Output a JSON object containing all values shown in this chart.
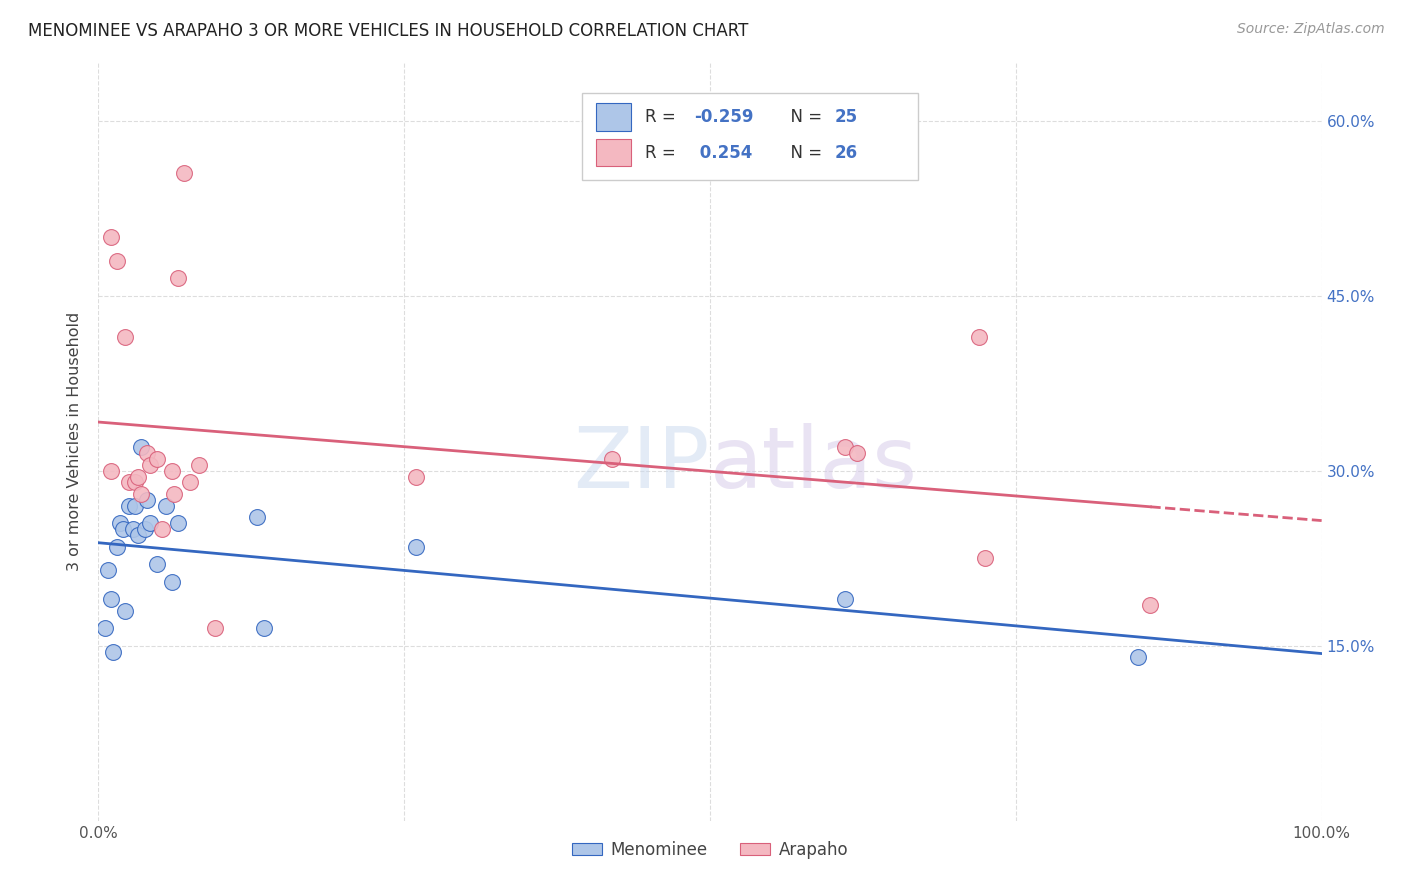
{
  "title": "MENOMINEE VS ARAPAHO 3 OR MORE VEHICLES IN HOUSEHOLD CORRELATION CHART",
  "source": "Source: ZipAtlas.com",
  "ylabel": "3 or more Vehicles in Household",
  "watermark_zip": "ZIP",
  "watermark_atlas": "atlas",
  "xlim": [
    0.0,
    1.0
  ],
  "ylim": [
    0.0,
    0.65
  ],
  "ytick_positions": [
    0.15,
    0.3,
    0.45,
    0.6
  ],
  "ytick_labels": [
    "15.0%",
    "30.0%",
    "45.0%",
    "60.0%"
  ],
  "xtick_positions": [
    0.0,
    0.25,
    0.5,
    0.75,
    1.0
  ],
  "xtick_labels": [
    "0.0%",
    "",
    "",
    "",
    "100.0%"
  ],
  "menominee_x": [
    0.005,
    0.008,
    0.01,
    0.012,
    0.015,
    0.018,
    0.02,
    0.022,
    0.025,
    0.028,
    0.03,
    0.032,
    0.035,
    0.038,
    0.04,
    0.042,
    0.048,
    0.055,
    0.06,
    0.065,
    0.13,
    0.135,
    0.26,
    0.61,
    0.85
  ],
  "menominee_y": [
    0.165,
    0.215,
    0.19,
    0.145,
    0.235,
    0.255,
    0.25,
    0.18,
    0.27,
    0.25,
    0.27,
    0.245,
    0.32,
    0.25,
    0.275,
    0.255,
    0.22,
    0.27,
    0.205,
    0.255,
    0.26,
    0.165,
    0.235,
    0.19,
    0.14
  ],
  "arapaho_x": [
    0.01,
    0.015,
    0.022,
    0.025,
    0.03,
    0.035,
    0.04,
    0.042,
    0.048,
    0.052,
    0.06,
    0.062,
    0.065,
    0.075,
    0.082,
    0.095,
    0.26,
    0.42,
    0.61,
    0.62,
    0.72,
    0.725,
    0.86,
    0.01,
    0.032,
    0.07
  ],
  "arapaho_y": [
    0.5,
    0.48,
    0.415,
    0.29,
    0.29,
    0.28,
    0.315,
    0.305,
    0.31,
    0.25,
    0.3,
    0.28,
    0.465,
    0.29,
    0.305,
    0.165,
    0.295,
    0.31,
    0.32,
    0.315,
    0.415,
    0.225,
    0.185,
    0.3,
    0.295,
    0.555
  ],
  "scatter_color_menominee": "#aec6e8",
  "scatter_color_arapaho": "#f4b8c1",
  "line_color_menominee": "#3467c0",
  "line_color_arapaho": "#d9607a",
  "grid_color": "#dddddd",
  "background_color": "#ffffff",
  "title_fontsize": 12,
  "source_fontsize": 10,
  "tick_label_color": "#4472c4",
  "legend_r_color": "#4472c4",
  "legend_n_color": "#4472c4"
}
